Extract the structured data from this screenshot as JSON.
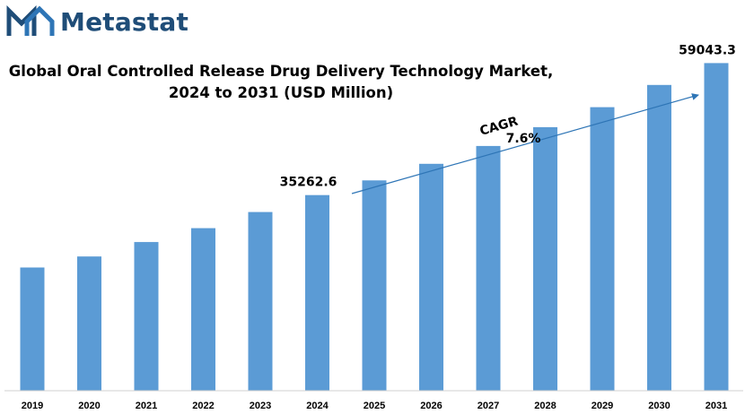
{
  "brand": {
    "name": "Metastat"
  },
  "chart_data": {
    "type": "bar",
    "title_lines": [
      "Global Oral Controlled Release Drug Delivery Technology Market,",
      "2024 to 2031 (USD Million)"
    ],
    "categories": [
      "2019",
      "2020",
      "2021",
      "2022",
      "2023",
      "2024",
      "2025",
      "2026",
      "2027",
      "2028",
      "2029",
      "2030",
      "2031"
    ],
    "values": [
      22200,
      24200,
      26800,
      29300,
      32200,
      35262.6,
      37900,
      40900,
      44100,
      47500,
      51100,
      55100,
      59043.3
    ],
    "data_labels": [
      {
        "category": "2024",
        "text": "35262.6"
      },
      {
        "category": "2031",
        "text": "59043.3"
      }
    ],
    "annotation": {
      "label": "CAGR",
      "value": "7.6%"
    },
    "ylim": [
      0,
      66700
    ],
    "bar_color": "#5b9bd5",
    "grid": false,
    "legend": "none"
  }
}
